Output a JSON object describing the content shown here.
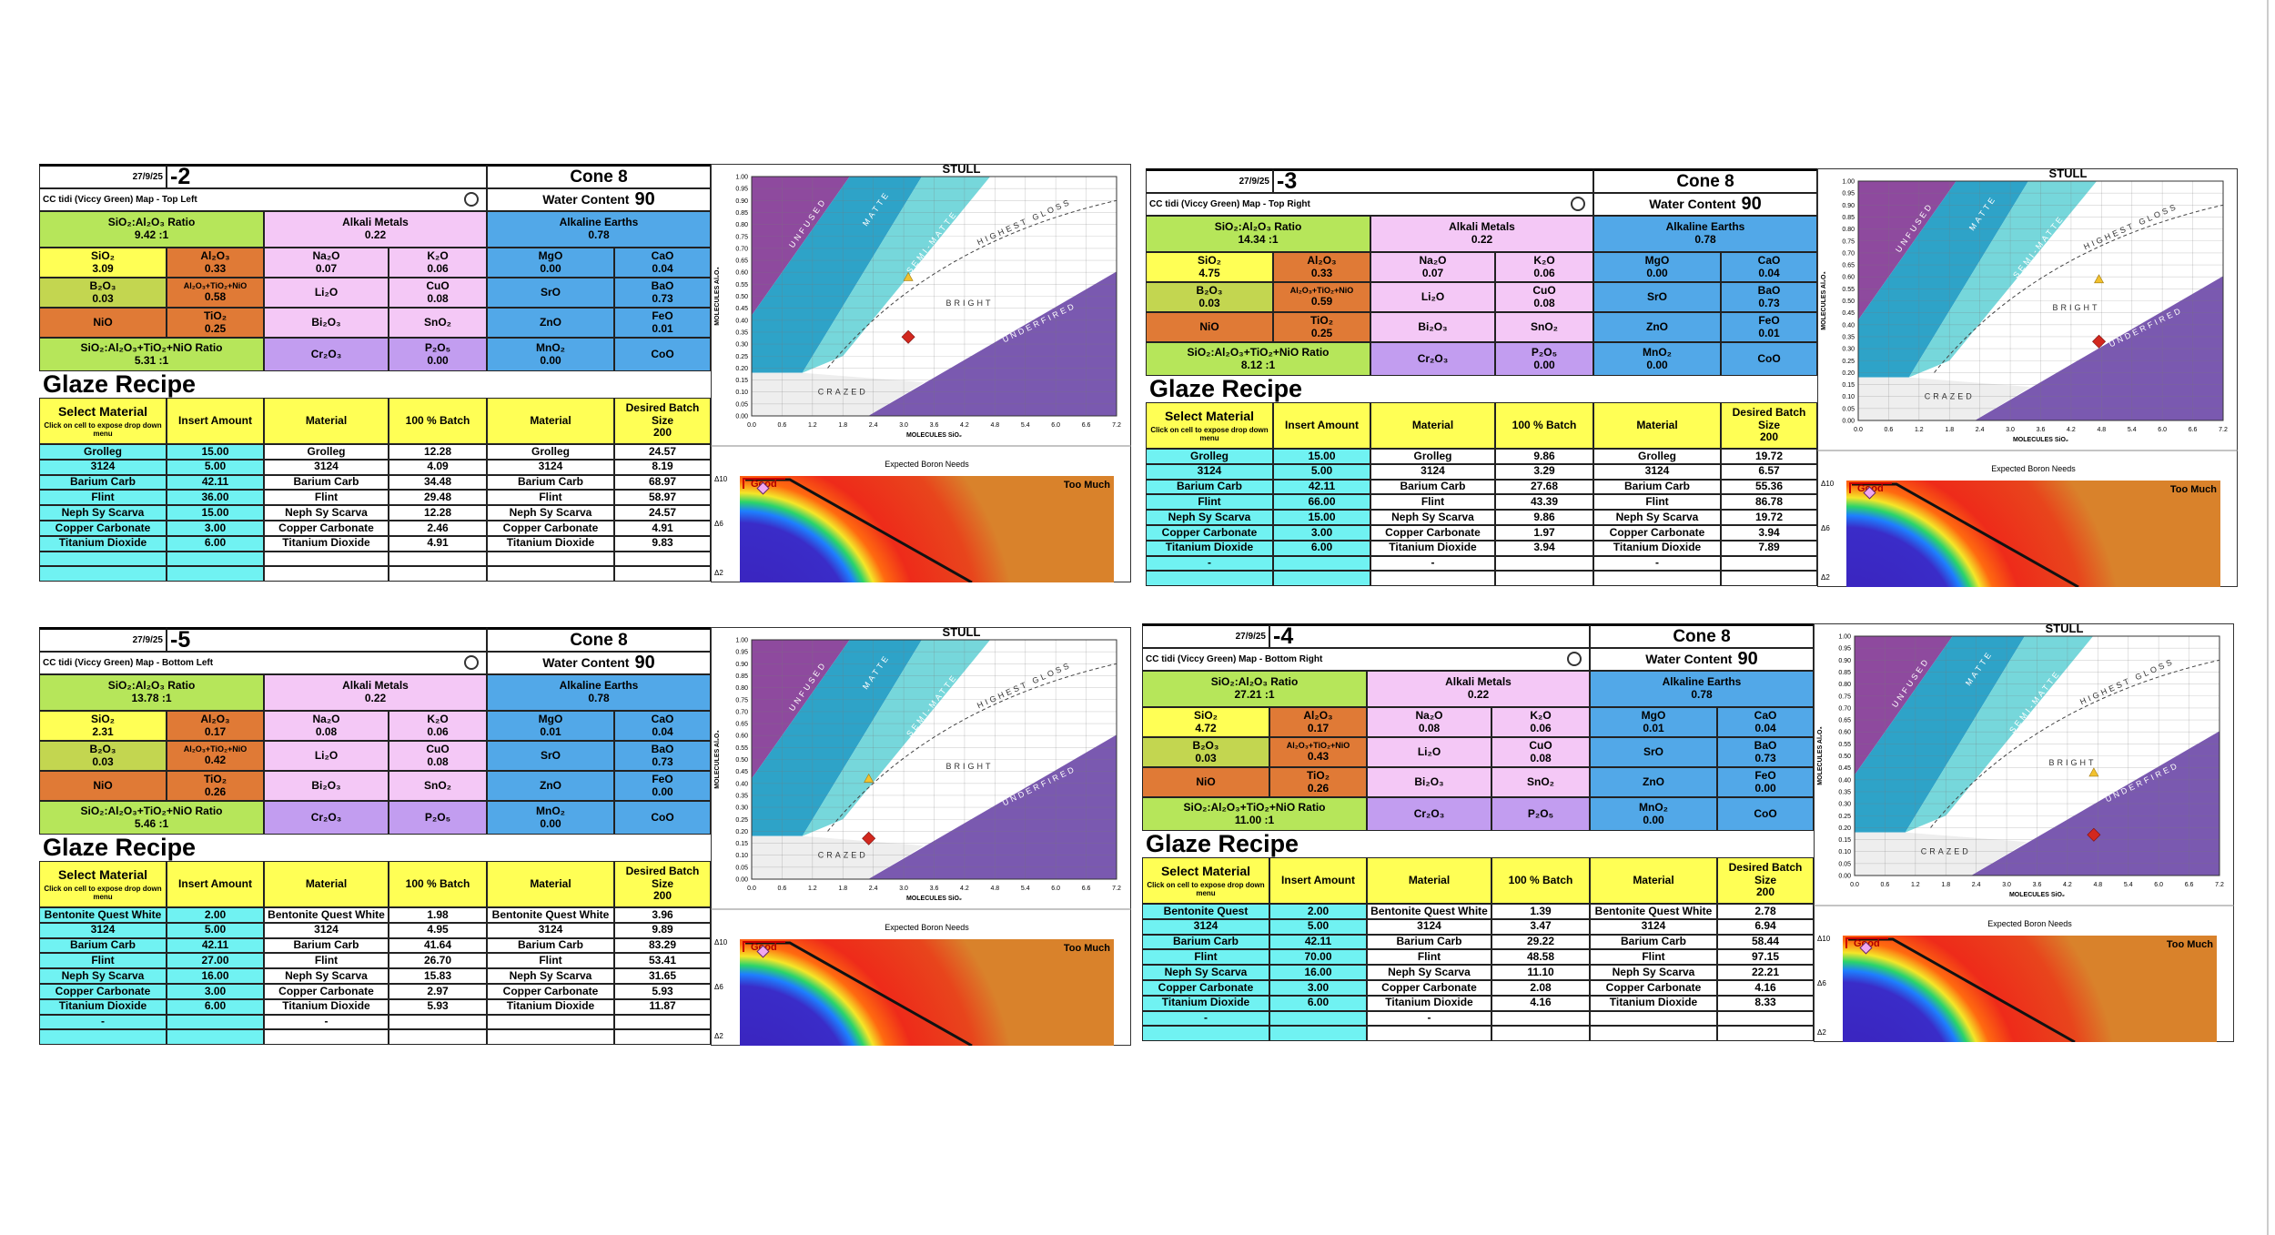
{
  "labels": {
    "cone": "Cone 8",
    "water_label": "Water Content",
    "water": "90",
    "ratio_label": "SiO₂:Al₂O₃ Ratio",
    "alkali_label": "Alkali Metals",
    "earths_label": "Alkaline Earths",
    "ratio2_label": "SiO₂:Al₂O₃+TiO₂+NiO Ratio",
    "recipe_title": "Glaze Recipe",
    "headers": {
      "select": "Select Material",
      "select_note": "Click on cell to expose drop down menu",
      "insert": "Insert Amount",
      "material": "Material",
      "batch": "100 % Batch",
      "material2": "Material",
      "desired": "Desired Batch Size",
      "batch_size": "200"
    },
    "oxides": {
      "sio2": "SiO₂",
      "al2o3": "Al₂O₃",
      "na2o": "Na₂O",
      "k2o": "K₂O",
      "mgo": "MgO",
      "cao": "CaO",
      "b2o3": "B₂O₃",
      "altini": "Al₂O₃+TiO₂+NiO",
      "li2o": "Li₂O",
      "cuo": "CuO",
      "sro": "SrO",
      "bao": "BaO",
      "nio": "NiO",
      "tio2": "TiO₂",
      "bi2o3": "Bi₂O₃",
      "sno2": "SnO₂",
      "zno": "ZnO",
      "feo": "FeO",
      "cr2o3": "Cr₂O₃",
      "p2o5": "P₂O₅",
      "mno2": "MnO₂",
      "coo": "CoO"
    }
  },
  "stull": {
    "title": "STULL",
    "xlabel": "MOLECULES SiO₂",
    "ylabel": "MOLECULES Al₂O₃",
    "regions": {
      "unfused": "UNFUSED",
      "matte": "MATTE",
      "semimatte": "SEMI-MATTE",
      "gloss": "HIGHEST GLOSS",
      "bright": "BRIGHT",
      "underfired": "UNDERFIRED",
      "crazed": "CRAZED"
    },
    "xlim": [
      0,
      7.2
    ],
    "ylim": [
      0,
      1
    ],
    "xticks": [
      {
        "value": 0,
        "label": "0.0"
      },
      0.6,
      1.2,
      1.8,
      2.4,
      {
        "value": 3,
        "label": "3.0"
      },
      3.6,
      4.2,
      4.8,
      5.4,
      {
        "value": 6,
        "label": "6.0"
      },
      6.6,
      7.2
    ],
    "yticks": [
      {
        "value": 0,
        "label": "0.00"
      },
      0.05,
      {
        "value": 0.1,
        "label": "0.10"
      },
      0.15,
      {
        "value": 0.2,
        "label": "0.20"
      },
      0.25,
      {
        "value": 0.3,
        "label": "0.30"
      },
      0.35,
      {
        "value": 0.4,
        "label": "0.40"
      },
      0.45,
      {
        "value": 0.5,
        "label": "0.50"
      },
      0.55,
      {
        "value": 0.6,
        "label": "0.60"
      },
      0.65,
      {
        "value": 0.7,
        "label": "0.70"
      },
      0.75,
      {
        "value": 0.8,
        "label": "0.80"
      },
      0.85,
      {
        "value": 0.9,
        "label": "0.90"
      },
      0.95,
      {
        "value": 1,
        "label": "1.00"
      }
    ]
  },
  "boron": {
    "title": "Expected Boron Needs",
    "good": "Good",
    "too_much": "Too Much",
    "ylabels": [
      "Δ10",
      "Δ6",
      "Δ2"
    ]
  },
  "panels": [
    {
      "date": "27/9/25",
      "id": "-2",
      "title": "CC tidi (Viccy Green) Map - Top Left",
      "ratio": "9.42 :1",
      "alkali": "0.22",
      "earths": "0.78",
      "ratio2": "5.31 :1",
      "oxides": {
        "sio2": "3.09",
        "al2o3": "0.33",
        "na2o": "0.07",
        "k2o": "0.06",
        "mgo": "0.00",
        "cao": "0.04",
        "b2o3": "0.03",
        "altini": "0.58",
        "cuo": "0.08",
        "bao": "0.73",
        "tio2": "0.25",
        "feo": "0.01",
        "p2o5": "0.00",
        "mno2": "0.00"
      },
      "recipe": [
        {
          "select": "Grolleg",
          "insert": "15.00",
          "material": "Grolleg",
          "batch": "12.28",
          "material2": "Grolleg",
          "desired": "24.57"
        },
        {
          "select": "3124",
          "insert": "5.00",
          "material": "3124",
          "batch": "4.09",
          "material2": "3124",
          "desired": "8.19"
        },
        {
          "select": "Barium Carb",
          "insert": "42.11",
          "material": "Barium Carb",
          "batch": "34.48",
          "material2": "Barium Carb",
          "desired": "68.97"
        },
        {
          "select": "Flint",
          "insert": "36.00",
          "material": "Flint",
          "batch": "29.48",
          "material2": "Flint",
          "desired": "58.97"
        },
        {
          "select": "Neph Sy Scarva",
          "insert": "15.00",
          "material": "Neph Sy Scarva",
          "batch": "12.28",
          "material2": "Neph Sy Scarva",
          "desired": "24.57"
        },
        {
          "select": "Copper Carbonate",
          "insert": "3.00",
          "material": "Copper Carbonate",
          "batch": "2.46",
          "material2": "Copper Carbonate",
          "desired": "4.91"
        },
        {
          "select": "Titanium Dioxide",
          "insert": "6.00",
          "material": "Titanium Dioxide",
          "batch": "4.91",
          "material2": "Titanium Dioxide",
          "desired": "9.83"
        }
      ]
    },
    {
      "date": "27/9/25",
      "id": "-3",
      "title": "CC tidi (Viccy Green) Map - Top Right",
      "ratio": "14.34 :1",
      "alkali": "0.22",
      "earths": "0.78",
      "ratio2": "8.12 :1",
      "oxides": {
        "sio2": "4.75",
        "al2o3": "0.33",
        "na2o": "0.07",
        "k2o": "0.06",
        "mgo": "0.00",
        "cao": "0.04",
        "b2o3": "0.03",
        "altini": "0.59",
        "cuo": "0.08",
        "bao": "0.73",
        "tio2": "0.25",
        "feo": "0.01",
        "p2o5": "0.00",
        "mno2": "0.00"
      },
      "recipe": [
        {
          "select": "Grolleg",
          "insert": "15.00",
          "material": "Grolleg",
          "batch": "9.86",
          "material2": "Grolleg",
          "desired": "19.72"
        },
        {
          "select": "3124",
          "insert": "5.00",
          "material": "3124",
          "batch": "3.29",
          "material2": "3124",
          "desired": "6.57"
        },
        {
          "select": "Barium Carb",
          "insert": "42.11",
          "material": "Barium Carb",
          "batch": "27.68",
          "material2": "Barium Carb",
          "desired": "55.36"
        },
        {
          "select": "Flint",
          "insert": "66.00",
          "material": "Flint",
          "batch": "43.39",
          "material2": "Flint",
          "desired": "86.78"
        },
        {
          "select": "Neph Sy Scarva",
          "insert": "15.00",
          "material": "Neph Sy Scarva",
          "batch": "9.86",
          "material2": "Neph Sy Scarva",
          "desired": "19.72"
        },
        {
          "select": "Copper Carbonate",
          "insert": "3.00",
          "material": "Copper Carbonate",
          "batch": "1.97",
          "material2": "Copper Carbonate",
          "desired": "3.94"
        },
        {
          "select": "Titanium Dioxide",
          "insert": "6.00",
          "material": "Titanium Dioxide",
          "batch": "3.94",
          "material2": "Titanium Dioxide",
          "desired": "7.89"
        },
        {
          "select": "-",
          "material": "-",
          "material2": "-"
        }
      ]
    },
    {
      "date": "27/9/25",
      "id": "-5",
      "title": "CC tidi (Viccy Green) Map - Bottom Left",
      "ratio": "13.78 :1",
      "alkali": "0.22",
      "earths": "0.78",
      "ratio2": "5.46 :1",
      "oxides": {
        "sio2": "2.31",
        "al2o3": "0.17",
        "na2o": "0.08",
        "k2o": "0.06",
        "mgo": "0.01",
        "cao": "0.04",
        "b2o3": "0.03",
        "altini": "0.42",
        "cuo": "0.08",
        "bao": "0.73",
        "tio2": "0.26",
        "feo": "0.00",
        "mno2": "0.00"
      },
      "recipe": [
        {
          "select": "Bentonite Quest White",
          "insert": "2.00",
          "material": "Bentonite Quest White",
          "batch": "1.98",
          "material2": "Bentonite Quest White",
          "desired": "3.96"
        },
        {
          "select": "3124",
          "insert": "5.00",
          "material": "3124",
          "batch": "4.95",
          "material2": "3124",
          "desired": "9.89"
        },
        {
          "select": "Barium Carb",
          "insert": "42.11",
          "material": "Barium Carb",
          "batch": "41.64",
          "material2": "Barium Carb",
          "desired": "83.29"
        },
        {
          "select": "Flint",
          "insert": "27.00",
          "material": "Flint",
          "batch": "26.70",
          "material2": "Flint",
          "desired": "53.41"
        },
        {
          "select": "Neph Sy Scarva",
          "insert": "16.00",
          "material": "Neph Sy Scarva",
          "batch": "15.83",
          "material2": "Neph Sy Scarva",
          "desired": "31.65"
        },
        {
          "select": "Copper Carbonate",
          "insert": "3.00",
          "material": "Copper Carbonate",
          "batch": "2.97",
          "material2": "Copper Carbonate",
          "desired": "5.93"
        },
        {
          "select": "Titanium Dioxide",
          "insert": "6.00",
          "material": "Titanium Dioxide",
          "batch": "5.93",
          "material2": "Titanium Dioxide",
          "desired": "11.87"
        },
        {
          "select": "-",
          "material": "-"
        }
      ]
    },
    {
      "date": "27/9/25",
      "id": "-4",
      "title": "CC tidi (Viccy Green) Map - Bottom Right",
      "ratio": "27.21 :1",
      "alkali": "0.22",
      "earths": "0.78",
      "ratio2": "11.00 :1",
      "oxides": {
        "sio2": "4.72",
        "al2o3": "0.17",
        "na2o": "0.08",
        "k2o": "0.06",
        "mgo": "0.01",
        "cao": "0.04",
        "b2o3": "0.03",
        "altini": "0.43",
        "cuo": "0.08",
        "bao": "0.73",
        "tio2": "0.26",
        "feo": "0.00",
        "mno2": "0.00"
      },
      "recipe": [
        {
          "select": "Bentonite Quest",
          "insert": "2.00",
          "material": "Bentonite Quest White",
          "batch": "1.39",
          "material2": "Bentonite Quest White",
          "desired": "2.78"
        },
        {
          "select": "3124",
          "insert": "5.00",
          "material": "3124",
          "batch": "3.47",
          "material2": "3124",
          "desired": "6.94"
        },
        {
          "select": "Barium Carb",
          "insert": "42.11",
          "material": "Barium Carb",
          "batch": "29.22",
          "material2": "Barium Carb",
          "desired": "58.44"
        },
        {
          "select": "Flint",
          "insert": "70.00",
          "material": "Flint",
          "batch": "48.58",
          "material2": "Flint",
          "desired": "97.15"
        },
        {
          "select": "Neph Sy Scarva",
          "insert": "16.00",
          "material": "Neph Sy Scarva",
          "batch": "11.10",
          "material2": "Neph Sy Scarva",
          "desired": "22.21"
        },
        {
          "select": "Copper Carbonate",
          "insert": "3.00",
          "material": "Copper Carbonate",
          "batch": "2.08",
          "material2": "Copper Carbonate",
          "desired": "4.16"
        },
        {
          "select": "Titanium Dioxide",
          "insert": "6.00",
          "material": "Titanium Dioxide",
          "batch": "4.16",
          "material2": "Titanium Dioxide",
          "desired": "8.33"
        },
        {
          "select": "-",
          "material": "-"
        }
      ]
    }
  ]
}
